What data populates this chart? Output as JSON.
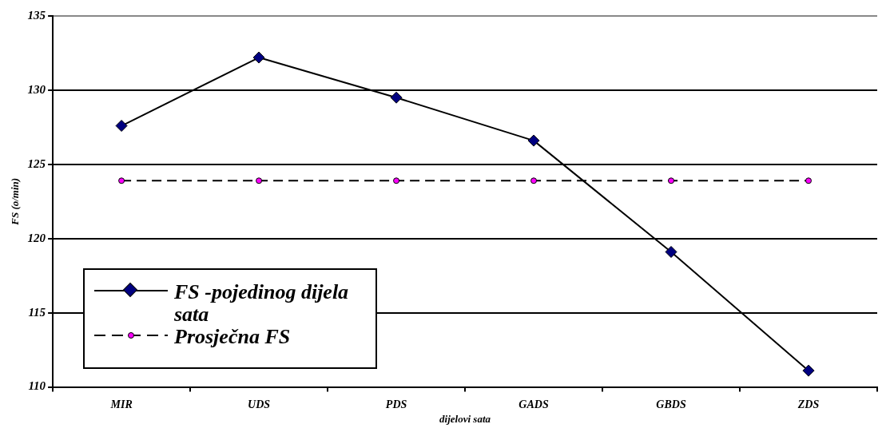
{
  "chart_data": {
    "type": "line",
    "xlabel": "dijelovi sata",
    "ylabel": "FS (o/min)",
    "categories": [
      "MIR",
      "UDS",
      "PDS",
      "GADS",
      "GBDS",
      "ZDS"
    ],
    "series": [
      {
        "name": "FS -pojedinog dijela sata",
        "color": "#000080",
        "values": [
          127.6,
          132.2,
          129.5,
          126.6,
          119.1,
          111.1
        ],
        "marker": "diamond",
        "line_style": "solid"
      },
      {
        "name": "Prosječna FS",
        "color": "#ff00ff",
        "values": [
          123.9,
          123.9,
          123.9,
          123.9,
          123.9,
          123.9
        ],
        "marker": "circle",
        "line_style": "dashed"
      }
    ],
    "ylim": [
      110,
      135
    ],
    "yticks": [
      110,
      115,
      120,
      125,
      130,
      135
    ],
    "grid": "y",
    "legend": "bottom left"
  }
}
